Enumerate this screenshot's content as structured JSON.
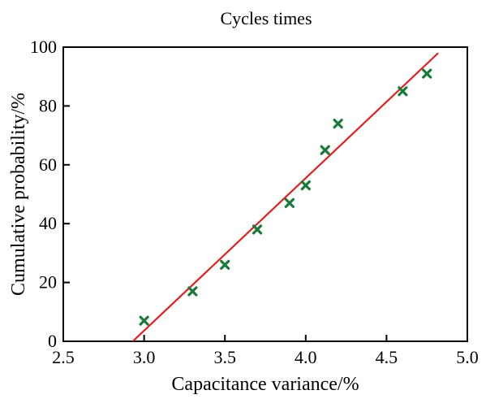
{
  "chart_data": {
    "type": "scatter",
    "title": "Cycles times",
    "xlabel": "Capacitance variance/%",
    "ylabel": "Cumulative probability/%",
    "xlim": [
      2.5,
      5.0
    ],
    "ylim": [
      0,
      100
    ],
    "xticks": [
      "2.5",
      "3.0",
      "3.5",
      "4.0",
      "4.5",
      "5.0"
    ],
    "yticks": [
      "0",
      "20",
      "40",
      "60",
      "80",
      "100"
    ],
    "grid": false,
    "series": [
      {
        "kind": "scatter",
        "marker": "x",
        "color": "#1a7a3a",
        "points": [
          {
            "x": 3.0,
            "y": 7
          },
          {
            "x": 3.3,
            "y": 17
          },
          {
            "x": 3.5,
            "y": 26
          },
          {
            "x": 3.7,
            "y": 38
          },
          {
            "x": 3.9,
            "y": 47
          },
          {
            "x": 4.0,
            "y": 53
          },
          {
            "x": 4.12,
            "y": 65
          },
          {
            "x": 4.2,
            "y": 74
          },
          {
            "x": 4.6,
            "y": 85
          },
          {
            "x": 4.75,
            "y": 91
          }
        ]
      },
      {
        "kind": "line",
        "color": "#e02020",
        "points": [
          {
            "x": 2.93,
            "y": 0
          },
          {
            "x": 4.82,
            "y": 98
          }
        ]
      }
    ]
  }
}
